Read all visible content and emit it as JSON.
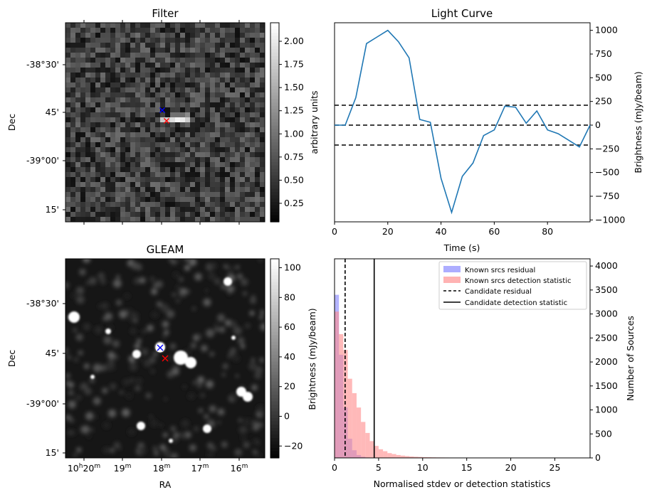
{
  "colors": {
    "line": "#1f77b4",
    "residual_hist": "#6a6aff",
    "detection_hist": "#ff8a8a",
    "threshold": "#000000"
  },
  "chart_data": [
    {
      "type": "heatmap",
      "title": "Filter",
      "ylabel": "Dec",
      "y_ticks": [
        "-38°30'",
        "45'",
        "-39°00'",
        "15'"
      ],
      "colorbar": {
        "label": "arbitrary units",
        "range": [
          0.05,
          2.2
        ],
        "ticks": [
          "0.25",
          "0.50",
          "0.75",
          "1.00",
          "1.25",
          "1.50",
          "1.75",
          "2.00"
        ]
      },
      "markers": [
        {
          "symbol": "x",
          "color": "#0000ff",
          "name": "source"
        },
        {
          "symbol": "x",
          "color": "#ff0000",
          "name": "candidate"
        }
      ]
    },
    {
      "type": "line",
      "title": "Light Curve",
      "xlabel": "Time (s)",
      "ylabel": "Brightness (mJy/beam)",
      "xlim": [
        0,
        96
      ],
      "ylim": [
        -1020,
        1080
      ],
      "x_ticks": [
        "0",
        "20",
        "40",
        "60",
        "80"
      ],
      "y_ticks": [
        "1000",
        "750",
        "500",
        "250",
        "0",
        "−250",
        "−500",
        "−750",
        "−1000"
      ],
      "x": [
        0,
        4,
        8,
        12,
        16,
        20,
        24,
        28,
        32,
        36,
        40,
        44,
        48,
        52,
        56,
        60,
        64,
        68,
        72,
        76,
        80,
        84,
        88,
        92,
        96
      ],
      "y": [
        0,
        0,
        290,
        860,
        930,
        1000,
        880,
        710,
        60,
        30,
        -560,
        -920,
        -540,
        -400,
        -110,
        -50,
        200,
        190,
        20,
        150,
        -50,
        -90,
        -160,
        -230,
        0
      ],
      "hlines": [
        210,
        0,
        -210
      ]
    },
    {
      "type": "heatmap",
      "title": "GLEAM",
      "xlabel": "RA",
      "ylabel": "Dec",
      "x_ticks": [
        "10h20m",
        "19m",
        "18m",
        "17m",
        "16m"
      ],
      "y_ticks": [
        "-38°30'",
        "45'",
        "-39°00'",
        "15'"
      ],
      "colorbar": {
        "label": "Brightness (mJy/beam)",
        "range": [
          -28,
          106
        ],
        "ticks": [
          "100",
          "80",
          "60",
          "40",
          "20",
          "0",
          "−20"
        ]
      },
      "markers": [
        {
          "symbol": "x",
          "color": "#0000ff",
          "name": "source"
        },
        {
          "symbol": "x",
          "color": "#ff0000",
          "name": "candidate"
        }
      ]
    },
    {
      "type": "bar",
      "xlabel": "Normalised stdev or detection statistics",
      "ylabel": "Number of Sources",
      "xlim": [
        0,
        29
      ],
      "ylim": [
        0,
        4150
      ],
      "x_ticks": [
        "0",
        "5",
        "10",
        "15",
        "20",
        "25"
      ],
      "y_ticks": [
        "4000",
        "3500",
        "3000",
        "2500",
        "2000",
        "1500",
        "1000",
        "500",
        "0"
      ],
      "bin_width": 0.5,
      "series": [
        {
          "name": "Known srcs residual",
          "values": [
            3400,
            2150,
            1050,
            400,
            160,
            60,
            25,
            10,
            5
          ]
        },
        {
          "name": "Known srcs detection statistic",
          "values": [
            3050,
            2580,
            2250,
            1650,
            1350,
            1050,
            750,
            520,
            350,
            250,
            180,
            140,
            100,
            80,
            60,
            48,
            38,
            30,
            24,
            20,
            16,
            14,
            12,
            10,
            9,
            8,
            7,
            6,
            5,
            5,
            4,
            4,
            3,
            3,
            3,
            3,
            2,
            2,
            2,
            2,
            2,
            2,
            1,
            1,
            1,
            1,
            1,
            1,
            1,
            1,
            1,
            1,
            1,
            1,
            1
          ]
        }
      ],
      "vlines": [
        {
          "name": "Candidate residual",
          "x": 1.2,
          "style": "dashed"
        },
        {
          "name": "Candidate detection statistic",
          "x": 4.5,
          "style": "solid"
        }
      ],
      "legend_position": "top-right"
    }
  ]
}
